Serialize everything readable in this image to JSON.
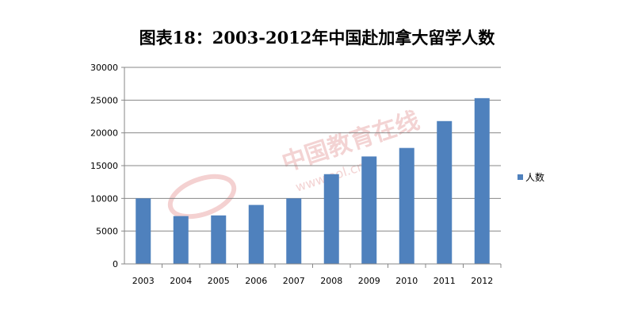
{
  "chart_data": {
    "type": "bar",
    "title": "图表18：2003-2012年中国赴加拿大留学人数",
    "categories": [
      "2003",
      "2004",
      "2005",
      "2006",
      "2007",
      "2008",
      "2009",
      "2010",
      "2011",
      "2012"
    ],
    "series": [
      {
        "name": "人数",
        "values": [
          10000,
          7300,
          7400,
          9000,
          10000,
          13700,
          16400,
          17700,
          21800,
          25300
        ],
        "color": "#4f81bd"
      }
    ],
    "ylim": [
      0,
      30000
    ],
    "yticks": [
      "0",
      "5000",
      "10000",
      "15000",
      "20000",
      "25000",
      "30000"
    ],
    "grid": true,
    "legend": "right"
  },
  "watermark": {
    "text_cn": "中国教育在线",
    "text_url": "www.eol.cn",
    "color": "#f1cccc"
  }
}
